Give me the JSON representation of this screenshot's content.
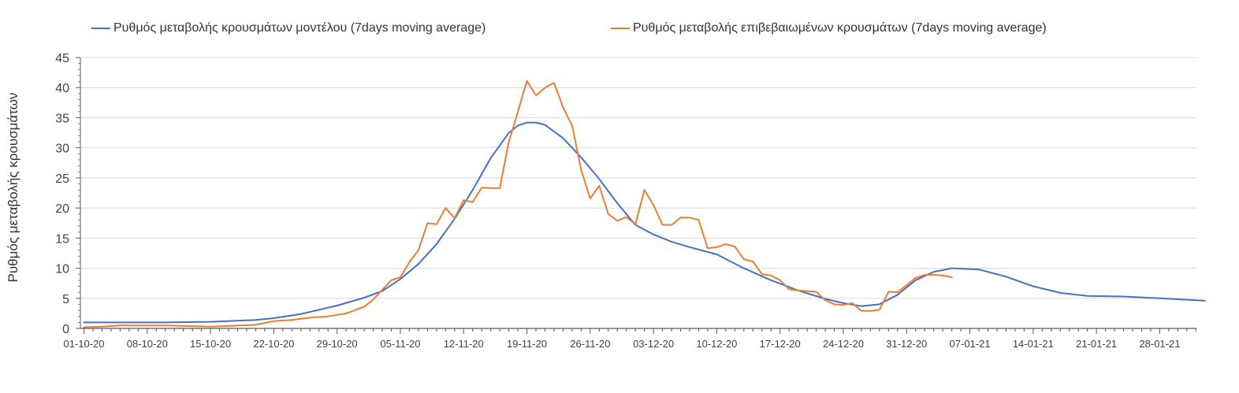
{
  "chart_data": {
    "type": "line",
    "ylabel": "Ρυθμός μεταβολής κρουσμάτων",
    "xlabel": "",
    "ylim": [
      0,
      45
    ],
    "y_ticks": [
      0,
      5,
      10,
      15,
      20,
      25,
      30,
      35,
      40,
      45
    ],
    "x_tick_labels": [
      "01-10-20",
      "08-10-20",
      "15-10-20",
      "22-10-20",
      "29-10-20",
      "05-11-20",
      "12-11-20",
      "19-11-20",
      "26-11-20",
      "03-12-20",
      "10-12-20",
      "17-12-20",
      "24-12-20",
      "31-12-20",
      "07-01-21",
      "14-01-21",
      "21-01-21",
      "28-01-21"
    ],
    "grid": true,
    "legend_position": "top",
    "series": [
      {
        "name": "Ρυθμός μεταβολής κρουσμάτων μοντέλου (7days moving average)",
        "color": "#4472C4",
        "x": [
          "01-10-20",
          "05-10-20",
          "10-10-20",
          "15-10-20",
          "20-10-20",
          "22-10-20",
          "25-10-20",
          "29-10-20",
          "01-11-20",
          "03-11-20",
          "05-11-20",
          "07-11-20",
          "09-11-20",
          "11-11-20",
          "13-11-20",
          "15-11-20",
          "17-11-20",
          "18-11-20",
          "19-11-20",
          "20-11-20",
          "21-11-20",
          "23-11-20",
          "25-11-20",
          "27-11-20",
          "29-11-20",
          "01-12-20",
          "03-12-20",
          "05-12-20",
          "07-12-20",
          "10-12-20",
          "13-12-20",
          "16-12-20",
          "19-12-20",
          "22-12-20",
          "24-12-20",
          "26-12-20",
          "28-12-20",
          "30-12-20",
          "01-01-21",
          "03-01-21",
          "05-01-21",
          "08-01-21",
          "11-01-21",
          "14-01-21",
          "17-01-21",
          "20-01-21",
          "24-01-21",
          "28-01-21",
          "02-02-21"
        ],
        "values": [
          1.0,
          1.0,
          1.0,
          1.1,
          1.4,
          1.7,
          2.4,
          3.8,
          5.1,
          6.2,
          8.2,
          10.7,
          14.0,
          18.2,
          23.0,
          28.3,
          32.5,
          33.7,
          34.2,
          34.2,
          33.8,
          31.6,
          28.4,
          24.8,
          20.8,
          17.2,
          15.6,
          14.4,
          13.5,
          12.3,
          10.0,
          8.0,
          6.3,
          4.9,
          4.2,
          3.7,
          4.0,
          5.6,
          8.0,
          9.4,
          10.0,
          9.8,
          8.6,
          7.0,
          5.9,
          5.4,
          5.3,
          5.0,
          4.6
        ]
      },
      {
        "name": "Ρυθμός μεταβολής επιβεβαιωμένων κρουσμάτων (7days moving average)",
        "color": "#ED7D31",
        "x": [
          "01-10-20",
          "03-10-20",
          "05-10-20",
          "08-10-20",
          "10-10-20",
          "12-10-20",
          "15-10-20",
          "17-10-20",
          "20-10-20",
          "22-10-20",
          "24-10-20",
          "26-10-20",
          "28-10-20",
          "30-10-20",
          "01-11-20",
          "02-11-20",
          "04-11-20",
          "05-11-20",
          "06-11-20",
          "07-11-20",
          "08-11-20",
          "09-11-20",
          "10-11-20",
          "11-11-20",
          "12-11-20",
          "13-11-20",
          "14-11-20",
          "15-11-20",
          "16-11-20",
          "17-11-20",
          "18-11-20",
          "19-11-20",
          "20-11-20",
          "21-11-20",
          "22-11-20",
          "23-11-20",
          "24-11-20",
          "25-11-20",
          "26-11-20",
          "27-11-20",
          "28-11-20",
          "29-11-20",
          "30-11-20",
          "01-12-20",
          "02-12-20",
          "03-12-20",
          "04-12-20",
          "05-12-20",
          "06-12-20",
          "07-12-20",
          "08-12-20",
          "09-12-20",
          "10-12-20",
          "11-12-20",
          "12-12-20",
          "13-12-20",
          "14-12-20",
          "15-12-20",
          "16-12-20",
          "17-12-20",
          "18-12-20",
          "19-12-20",
          "20-12-20",
          "21-12-20",
          "22-12-20",
          "23-12-20",
          "24-12-20",
          "25-12-20",
          "26-12-20",
          "27-12-20",
          "28-12-20",
          "29-12-20",
          "30-12-20",
          "31-12-20",
          "01-01-21",
          "02-01-21",
          "03-01-21",
          "04-01-21",
          "05-01-21"
        ],
        "values": [
          0.2,
          0.3,
          0.5,
          0.5,
          0.5,
          0.4,
          0.3,
          0.4,
          0.6,
          1.2,
          1.4,
          1.8,
          2.0,
          2.5,
          3.6,
          4.8,
          8.0,
          8.5,
          11.0,
          13.0,
          17.5,
          17.3,
          20.0,
          18.3,
          21.3,
          21.0,
          23.4,
          23.3,
          23.3,
          31.0,
          36.0,
          41.1,
          38.7,
          40.0,
          40.8,
          36.7,
          33.7,
          26.3,
          21.6,
          23.7,
          19.0,
          17.9,
          18.5,
          17.3,
          23.0,
          20.5,
          17.2,
          17.2,
          18.4,
          18.4,
          18.0,
          13.3,
          13.5,
          14.0,
          13.6,
          11.5,
          11.1,
          9.0,
          8.8,
          8.0,
          6.5,
          6.3,
          6.2,
          6.1,
          4.7,
          4.0,
          3.9,
          4.2,
          2.9,
          2.9,
          3.1,
          6.1,
          6.0,
          7.2,
          8.4,
          8.9,
          8.9,
          8.8,
          8.5
        ]
      }
    ]
  }
}
